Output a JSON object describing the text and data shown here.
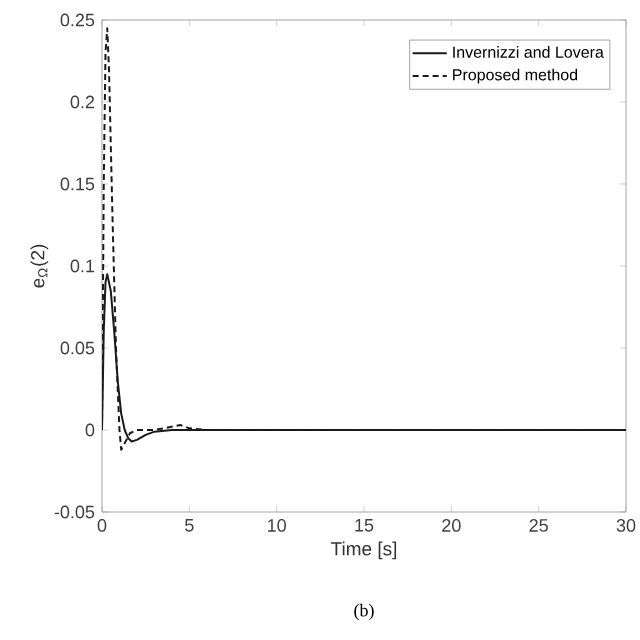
{
  "chart_data": {
    "type": "line",
    "xlabel": "Time [s]",
    "ylabel": "e$_{Ω}$(2)",
    "annotations": [
      "(b)"
    ],
    "xlim": [
      0,
      30
    ],
    "ylim": [
      -0.05,
      0.25
    ],
    "xticks": [
      0,
      5,
      10,
      15,
      20,
      25,
      30
    ],
    "yticks": [
      -0.05,
      0,
      0.05,
      0.1,
      0.15,
      0.2,
      0.25
    ],
    "legend": "top right",
    "grid": false,
    "series": [
      {
        "name": "Invernizzi and Lovera",
        "color": "#1a1a1a",
        "line_style": "solid",
        "x": [
          0,
          0.1,
          0.2,
          0.3,
          0.5,
          0.7,
          0.9,
          1.1,
          1.3,
          1.5,
          1.7,
          2.0,
          2.5,
          3.0,
          4.0,
          5.0,
          7.0,
          10,
          15,
          20,
          25,
          30
        ],
        "values": [
          0,
          0.06,
          0.09,
          0.095,
          0.085,
          0.06,
          0.03,
          0.01,
          0.0,
          -0.005,
          -0.007,
          -0.006,
          -0.003,
          -0.001,
          0,
          0,
          0,
          0,
          0,
          0,
          0,
          0
        ]
      },
      {
        "name": "Proposed method",
        "color": "#1a1a1a",
        "line_style": "dashed",
        "x": [
          0,
          0.1,
          0.2,
          0.3,
          0.4,
          0.6,
          0.8,
          1.0,
          1.1,
          1.3,
          1.6,
          2.0,
          3.0,
          4.0,
          4.5,
          5.0,
          6.0,
          8.0,
          10,
          15,
          20,
          25,
          30
        ],
        "values": [
          0,
          0.15,
          0.23,
          0.245,
          0.22,
          0.13,
          0.05,
          0.0,
          -0.012,
          -0.008,
          -0.002,
          0.0,
          0.0,
          0.002,
          0.003,
          0.001,
          0,
          0,
          0,
          0,
          0,
          0,
          0
        ]
      }
    ]
  }
}
